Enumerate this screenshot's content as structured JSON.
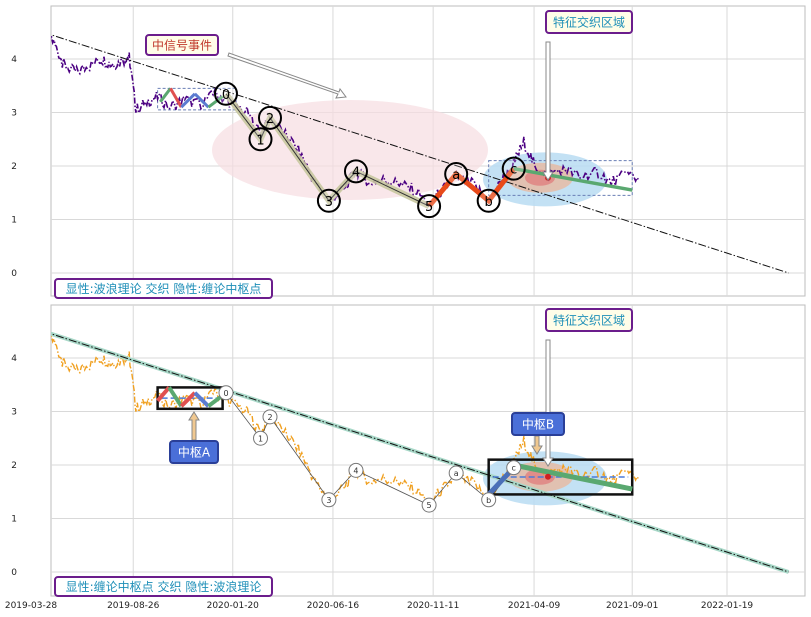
{
  "chart_data": [
    {
      "type": "line",
      "panel": "top",
      "x_ticks": [
        "2019-03-28",
        "2019-08-26",
        "2020-01-20",
        "2020-06-16",
        "2020-11-11",
        "2021-04-09",
        "2021-09-01",
        "2022-01-19"
      ],
      "yticks": [
        0,
        1,
        2,
        3,
        4
      ],
      "ylim": [
        -0.45,
        5.0
      ],
      "grid": true,
      "price_series": [
        [
          "2019-04-01",
          4.1
        ],
        [
          "2019-04-15",
          4.45
        ],
        [
          "2019-05-01",
          4.3
        ],
        [
          "2019-05-15",
          3.9
        ],
        [
          "2019-06-01",
          3.75
        ],
        [
          "2019-06-20",
          3.85
        ],
        [
          "2019-07-10",
          4.0
        ],
        [
          "2019-07-25",
          3.9
        ],
        [
          "2019-08-10",
          3.95
        ],
        [
          "2019-08-20",
          4.05
        ],
        [
          "2019-08-30",
          3.05
        ],
        [
          "2019-09-15",
          3.2
        ],
        [
          "2019-10-01",
          3.3
        ],
        [
          "2019-10-20",
          3.1
        ],
        [
          "2019-11-10",
          3.25
        ],
        [
          "2019-12-01",
          3.15
        ],
        [
          "2019-12-25",
          3.35
        ],
        [
          "2020-01-15",
          3.2
        ],
        [
          "2020-02-10",
          3.0
        ],
        [
          "2020-03-01",
          2.6
        ],
        [
          "2020-03-15",
          2.9
        ],
        [
          "2020-04-10",
          2.55
        ],
        [
          "2020-05-01",
          2.2
        ],
        [
          "2020-05-20",
          1.7
        ],
        [
          "2020-06-10",
          1.35
        ],
        [
          "2020-07-01",
          1.55
        ],
        [
          "2020-07-20",
          1.9
        ],
        [
          "2020-08-10",
          1.7
        ],
        [
          "2020-09-01",
          1.75
        ],
        [
          "2020-09-25",
          1.65
        ],
        [
          "2020-10-15",
          1.55
        ],
        [
          "2020-11-05",
          1.3
        ],
        [
          "2020-11-25",
          1.55
        ],
        [
          "2020-12-15",
          1.8
        ],
        [
          "2021-01-10",
          1.65
        ],
        [
          "2021-02-01",
          1.35
        ],
        [
          "2021-02-20",
          1.7
        ],
        [
          "2021-03-10",
          2.05
        ],
        [
          "2021-03-25",
          2.45
        ],
        [
          "2021-04-10",
          2.0
        ],
        [
          "2021-05-01",
          1.85
        ],
        [
          "2021-05-25",
          1.95
        ],
        [
          "2021-06-15",
          1.8
        ],
        [
          "2021-07-10",
          1.9
        ],
        [
          "2021-08-01",
          1.7
        ],
        [
          "2021-08-25",
          1.85
        ],
        [
          "2021-09-10",
          1.75
        ]
      ],
      "price_color": "#4b0082",
      "trend_line": [
        [
          "2019-04-15",
          4.5
        ],
        [
          "2022-04-20",
          0.0
        ]
      ],
      "wave_points": [
        {
          "label": "0",
          "x": "2020-01-10",
          "y": 3.35
        },
        {
          "label": "1",
          "x": "2020-03-01",
          "y": 2.5
        },
        {
          "label": "2",
          "x": "2020-03-15",
          "y": 2.9
        },
        {
          "label": "3",
          "x": "2020-06-10",
          "y": 1.35
        },
        {
          "label": "4",
          "x": "2020-07-20",
          "y": 1.9
        },
        {
          "label": "5",
          "x": "2020-11-05",
          "y": 1.25
        },
        {
          "label": "a",
          "x": "2020-12-15",
          "y": 1.85
        },
        {
          "label": "b",
          "x": "2021-02-01",
          "y": 1.35
        },
        {
          "label": "c",
          "x": "2021-03-10",
          "y": 1.95
        }
      ],
      "annotations": [
        "中信号事件",
        "特征交织区域",
        "显性:波浪理论 交织 隐性:缠论中枢点"
      ],
      "accent_colors": {
        "box_border": "#6b1d8c",
        "signal_text": "#c0392b",
        "title_text": "#1f8fb8",
        "wave_line": "#e84a1a",
        "pivot_fill": "#c8c8a8"
      }
    },
    {
      "type": "line",
      "panel": "bottom",
      "x_ticks": [
        "2019-03-28",
        "2019-08-26",
        "2020-01-20",
        "2020-06-16",
        "2020-11-11",
        "2021-04-09",
        "2021-09-01",
        "2022-01-19"
      ],
      "yticks": [
        0,
        1,
        2,
        3,
        4
      ],
      "ylim": [
        -0.45,
        5.0
      ],
      "grid": true,
      "price_color": "#f0a020",
      "pivot_boxes": [
        {
          "label": "中枢A",
          "x0": "2019-10-01",
          "x1": "2020-01-05",
          "y0": 3.05,
          "y1": 3.45
        },
        {
          "label": "中枢B",
          "x0": "2021-02-01",
          "x1": "2021-09-01",
          "y0": 1.45,
          "y1": 2.1
        }
      ],
      "wave_points": [
        {
          "label": "0",
          "x": "2020-01-10",
          "y": 3.35
        },
        {
          "label": "1",
          "x": "2020-03-01",
          "y": 2.5
        },
        {
          "label": "2",
          "x": "2020-03-15",
          "y": 2.9
        },
        {
          "label": "3",
          "x": "2020-06-10",
          "y": 1.35
        },
        {
          "label": "4",
          "x": "2020-07-20",
          "y": 1.9
        },
        {
          "label": "5",
          "x": "2020-11-05",
          "y": 1.25
        },
        {
          "label": "a",
          "x": "2020-12-15",
          "y": 1.85
        },
        {
          "label": "b",
          "x": "2021-02-01",
          "y": 1.35
        },
        {
          "label": "c",
          "x": "2021-03-10",
          "y": 1.95
        }
      ],
      "annotations": [
        "特征交织区域",
        "中枢A",
        "中枢B",
        "显性:缠论中枢点 交织 隐性:波浪理论"
      ]
    }
  ],
  "labels": {
    "top_signal": "中信号事件",
    "top_region": "特征交织区域",
    "top_title": "显性:波浪理论 交织 隐性:缠论中枢点",
    "bot_region": "特征交织区域",
    "pivot_a": "中枢A",
    "pivot_b": "中枢B",
    "bot_title": "显性:缠论中枢点 交织 隐性:波浪理论"
  }
}
